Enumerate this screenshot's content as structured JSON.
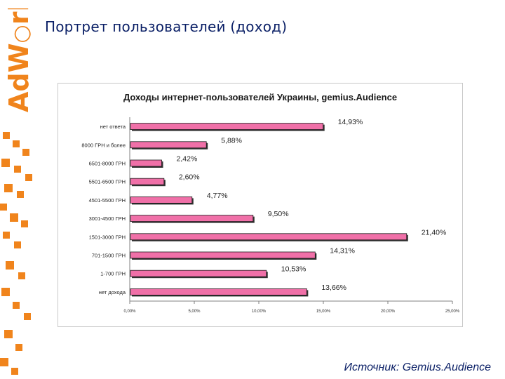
{
  "slide": {
    "title": "Портрет пользователей (доход)",
    "source": "Источник: Gemius.Audience",
    "logo_text": "AdWork"
  },
  "colors": {
    "accent_orange": "#f0841c",
    "bar_fill": "#f070a8",
    "bar_stroke": "#1a1a1a",
    "title_blue": "#0a1f66"
  },
  "chart_data": {
    "type": "bar",
    "orientation": "horizontal",
    "title": "Доходы интернет-пользователей Украины, gemius.Audience",
    "categories": [
      "нет ответа",
      "8000 ГРН и более",
      "6501-8000 ГРН",
      "5501-6500 ГРН",
      "4501-5500 ГРН",
      "3001-4500 ГРН",
      "1501-3000 ГРН",
      "701-1500 ГРН",
      "1-700 ГРН",
      "нет дохода"
    ],
    "values": [
      14.93,
      5.88,
      2.42,
      2.6,
      4.77,
      9.5,
      21.4,
      14.31,
      10.53,
      13.66
    ],
    "value_labels": [
      "14,93%",
      "5,88%",
      "2,42%",
      "2,60%",
      "4,77%",
      "9,50%",
      "21,40%",
      "14,31%",
      "10,53%",
      "13,66%"
    ],
    "xlim": [
      0,
      25
    ],
    "x_ticks": [
      "0,00%",
      "5,00%",
      "10,00%",
      "15,00%",
      "20,00%",
      "25,00%"
    ],
    "grid": false,
    "legend": "none",
    "xlabel": "",
    "ylabel": ""
  }
}
